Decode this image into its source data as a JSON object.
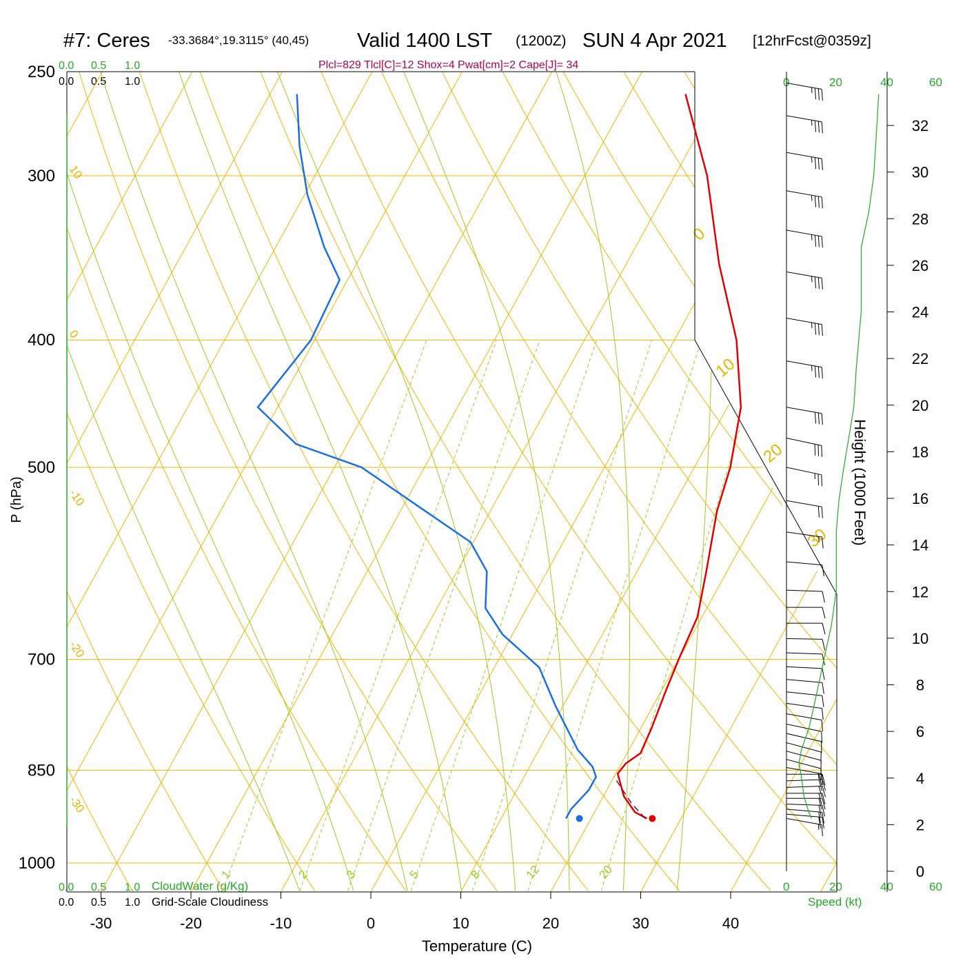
{
  "title": {
    "station": "#7: Ceres",
    "coords": "-33.3684°,19.3115° (40,45)",
    "valid": "Valid 1400 LST",
    "zulu": "(1200Z)",
    "date": "SUN 4 Apr 2021",
    "forecast": "[12hrFcst@0359z]"
  },
  "params": "Plcl=829 Tlcl[C]=12 Shox=4 Pwat[cm]=2 Cape[J]= 34",
  "scale_labels": {
    "cloud_top": [
      "0.0",
      "0.5",
      "1.0"
    ],
    "cloud_bottom": [
      "0.0",
      "0.5",
      "1.0"
    ],
    "cloudwater_label": "CloudWater (g/Kg)",
    "cloudiness_label": "Grid-Scale Cloudiness"
  },
  "wind_speed_axis": {
    "ticks": [
      "0",
      "20",
      "40",
      "60"
    ],
    "label": "Speed (kt)"
  },
  "colors": {
    "isotherm": "#f0b400",
    "dry_adiabat": "#f0b400",
    "moist_adiabat": "#99cc22",
    "mixing_ratio": "#99cc22",
    "temperature": "#e00000",
    "dewpoint": "#1a6fe0",
    "parcel": "#800040",
    "wind_speed": "#22aa22",
    "params": "#b00050",
    "green_text": "#22aa22"
  },
  "chart_data": {
    "type": "line",
    "title": "#7: Ceres Valid 1400 LST (1200Z) SUN 4 Apr 2021",
    "xlabel": "Temperature (C)",
    "ylabel": "P (hPa)",
    "y2label": "Height (1000 Feet)",
    "x_ticks": [
      -30,
      -20,
      -10,
      0,
      10,
      20,
      30,
      40
    ],
    "p_ticks": [
      250,
      300,
      400,
      500,
      700,
      850,
      1000
    ],
    "height_ticks": [
      0,
      2,
      4,
      6,
      8,
      10,
      12,
      14,
      16,
      18,
      20,
      22,
      24,
      26,
      28,
      30,
      32
    ],
    "isotherm_labels": [
      "10",
      "0",
      "-10",
      "-20",
      "-30"
    ],
    "isotherm_labels_right": [
      "0",
      "10",
      "20",
      "30"
    ],
    "mixing_ratio_labels": [
      "1",
      "2",
      "3",
      "5",
      "8",
      "12",
      "20"
    ],
    "series": [
      {
        "name": "Temperature",
        "points": [
          [
            26.2,
            925
          ],
          [
            24.5,
            915
          ],
          [
            22.3,
            890
          ],
          [
            20.2,
            855
          ],
          [
            20.5,
            840
          ],
          [
            21.5,
            825
          ],
          [
            21.2,
            790
          ],
          [
            20.5,
            740
          ],
          [
            20.0,
            700
          ],
          [
            19.5,
            650
          ],
          [
            17.7,
            600
          ],
          [
            15.2,
            540
          ],
          [
            14.0,
            500
          ],
          [
            11.5,
            450
          ],
          [
            6.9,
            400
          ],
          [
            0.3,
            350
          ],
          [
            -6.4,
            300
          ],
          [
            -13.8,
            260
          ]
        ]
      },
      {
        "name": "Dewpoint",
        "points": [
          [
            17.2,
            925
          ],
          [
            17.2,
            910
          ],
          [
            18.0,
            880
          ],
          [
            18.0,
            860
          ],
          [
            17.0,
            845
          ],
          [
            14.3,
            820
          ],
          [
            9.2,
            760
          ],
          [
            5.0,
            710
          ],
          [
            -1.1,
            670
          ],
          [
            -4.6,
            640
          ],
          [
            -6.7,
            600
          ],
          [
            -10.3,
            570
          ],
          [
            -17.2,
            540
          ],
          [
            -27.0,
            500
          ],
          [
            -35.7,
            480
          ],
          [
            -42.2,
            450
          ],
          [
            -40.4,
            400
          ],
          [
            -40.9,
            360
          ],
          [
            -44.6,
            340
          ],
          [
            -49.7,
            310
          ],
          [
            -53.5,
            285
          ],
          [
            -57.0,
            260
          ]
        ]
      },
      {
        "name": "Parcel",
        "points": [
          [
            26.0,
            925
          ],
          [
            23.5,
            900
          ],
          [
            20.0,
            860
          ]
        ]
      }
    ],
    "surface_temperature": 26.8,
    "surface_dewpoint": 18.7,
    "surface_pressure": 925,
    "wind_barbs": [
      {
        "p": 925,
        "dir": 280,
        "spd": 15
      },
      {
        "p": 918,
        "dir": 275,
        "spd": 18
      },
      {
        "p": 910,
        "dir": 275,
        "spd": 20
      },
      {
        "p": 902,
        "dir": 272,
        "spd": 20
      },
      {
        "p": 893,
        "dir": 270,
        "spd": 20
      },
      {
        "p": 885,
        "dir": 270,
        "spd": 22
      },
      {
        "p": 876,
        "dir": 268,
        "spd": 22
      },
      {
        "p": 866,
        "dir": 268,
        "spd": 20
      },
      {
        "p": 856,
        "dir": 270,
        "spd": 18
      },
      {
        "p": 846,
        "dir": 280,
        "spd": 15
      },
      {
        "p": 834,
        "dir": 285,
        "spd": 12
      },
      {
        "p": 822,
        "dir": 285,
        "spd": 10
      },
      {
        "p": 810,
        "dir": 285,
        "spd": 10
      },
      {
        "p": 797,
        "dir": 283,
        "spd": 10
      },
      {
        "p": 784,
        "dir": 282,
        "spd": 10
      },
      {
        "p": 770,
        "dir": 280,
        "spd": 10
      },
      {
        "p": 756,
        "dir": 278,
        "spd": 10
      },
      {
        "p": 741,
        "dir": 276,
        "spd": 10
      },
      {
        "p": 725,
        "dir": 275,
        "spd": 10
      },
      {
        "p": 709,
        "dir": 273,
        "spd": 10
      },
      {
        "p": 692,
        "dir": 272,
        "spd": 10
      },
      {
        "p": 675,
        "dir": 271,
        "spd": 10
      },
      {
        "p": 657,
        "dir": 270,
        "spd": 10
      },
      {
        "p": 639,
        "dir": 270,
        "spd": 10
      },
      {
        "p": 620,
        "dir": 272,
        "spd": 10
      },
      {
        "p": 590,
        "dir": 275,
        "spd": 10
      },
      {
        "p": 560,
        "dir": 278,
        "spd": 15
      },
      {
        "p": 530,
        "dir": 280,
        "spd": 20
      },
      {
        "p": 500,
        "dir": 282,
        "spd": 25
      },
      {
        "p": 475,
        "dir": 282,
        "spd": 30
      },
      {
        "p": 450,
        "dir": 280,
        "spd": 30
      },
      {
        "p": 415,
        "dir": 280,
        "spd": 35
      },
      {
        "p": 385,
        "dir": 280,
        "spd": 35
      },
      {
        "p": 355,
        "dir": 280,
        "spd": 35
      },
      {
        "p": 330,
        "dir": 280,
        "spd": 35
      },
      {
        "p": 308,
        "dir": 280,
        "spd": 35
      },
      {
        "p": 288,
        "dir": 280,
        "spd": 35
      },
      {
        "p": 270,
        "dir": 280,
        "spd": 35
      },
      {
        "p": 255,
        "dir": 280,
        "spd": 35
      }
    ],
    "wind_speed_profile": [
      [
        10,
        925
      ],
      [
        9,
        915
      ],
      [
        7,
        890
      ],
      [
        6,
        860
      ],
      [
        5,
        840
      ],
      [
        6,
        820
      ],
      [
        9,
        790
      ],
      [
        11,
        760
      ],
      [
        13,
        730
      ],
      [
        15,
        700
      ],
      [
        18,
        660
      ],
      [
        20,
        620
      ],
      [
        20,
        590
      ],
      [
        20,
        560
      ],
      [
        21,
        530
      ],
      [
        23,
        500
      ],
      [
        25,
        475
      ],
      [
        27,
        450
      ],
      [
        28,
        420
      ],
      [
        29,
        400
      ],
      [
        30,
        380
      ],
      [
        30,
        360
      ],
      [
        30,
        340
      ],
      [
        33,
        320
      ],
      [
        35,
        300
      ],
      [
        36,
        280
      ],
      [
        37,
        260
      ]
    ]
  }
}
